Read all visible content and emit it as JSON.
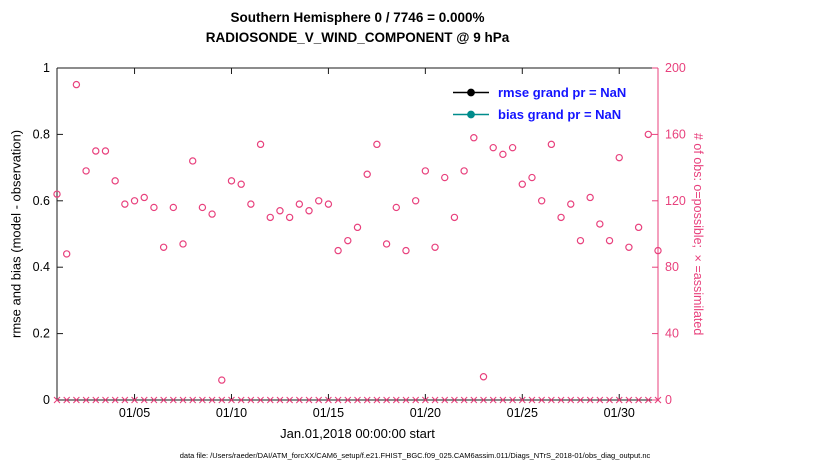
{
  "title": {
    "line1": "Southern Hemisphere 0 / 7746 = 0.000%",
    "line2": "RADIOSONDE_V_WIND_COMPONENT @ 9 hPa"
  },
  "colors": {
    "accent_pink": "#e8417d",
    "legend_blue": "#1414ff",
    "bias_teal": "#008c8c",
    "rmse_black": "#000000",
    "axis_black": "#1a1a1a"
  },
  "chart_data": {
    "type": "scatter",
    "title": "Southern Hemisphere 0 / 7746 = 0.000% | RADIOSONDE_V_WIND_COMPONENT @ 9 hPa",
    "xlabel": "Jan.01,2018 00:00:00 start",
    "ylabel_left": "rmse and bias (model - observation)",
    "ylabel_right": "# of obs: o=possible; ×=assimilated",
    "ylim_left": [
      0,
      1
    ],
    "ylim_right": [
      0,
      200
    ],
    "x_days_range": [
      0,
      31
    ],
    "grid": false,
    "legend_position": "top-right-inside",
    "xtick_days": [
      4,
      9,
      14,
      19,
      24,
      29
    ],
    "xtick_labels": [
      "01/05",
      "01/10",
      "01/15",
      "01/20",
      "01/25",
      "01/30"
    ],
    "ytick_left_labels": [
      "0",
      "0.2",
      "0.4",
      "0.6",
      "0.8",
      "1"
    ],
    "ytick_right_labels": [
      "0",
      "40",
      "80",
      "120",
      "160",
      "200"
    ],
    "legend": [
      {
        "name": "rmse",
        "label": "rmse grand pr = NaN",
        "color": "#000000"
      },
      {
        "name": "bias",
        "label": "bias grand pr = NaN",
        "color": "#008c8c"
      }
    ],
    "series": [
      {
        "name": "possible_obs",
        "marker": "o",
        "axis": "right",
        "color": "#e8417d",
        "x_start": 0,
        "x_step": 0.5,
        "values": [
          124,
          88,
          190,
          138,
          150,
          150,
          132,
          118,
          120,
          122,
          116,
          92,
          116,
          94,
          144,
          116,
          112,
          12,
          132,
          130,
          118,
          154,
          110,
          114,
          110,
          118,
          114,
          120,
          118,
          90,
          96,
          104,
          136,
          154,
          94,
          116,
          90,
          120,
          138,
          92,
          134,
          110,
          138,
          158,
          14,
          152,
          148,
          152,
          130,
          134,
          120,
          154,
          110,
          118,
          96,
          122,
          106,
          96,
          146,
          92,
          104,
          160,
          90
        ]
      },
      {
        "name": "assimilated_obs",
        "marker": "x",
        "axis": "right",
        "color": "#e8417d",
        "x_start": 0,
        "x_step": 0.5,
        "values": [
          0,
          0,
          0,
          0,
          0,
          0,
          0,
          0,
          0,
          0,
          0,
          0,
          0,
          0,
          0,
          0,
          0,
          0,
          0,
          0,
          0,
          0,
          0,
          0,
          0,
          0,
          0,
          0,
          0,
          0,
          0,
          0,
          0,
          0,
          0,
          0,
          0,
          0,
          0,
          0,
          0,
          0,
          0,
          0,
          0,
          0,
          0,
          0,
          0,
          0,
          0,
          0,
          0,
          0,
          0,
          0,
          0,
          0,
          0,
          0,
          0,
          0,
          0
        ]
      }
    ]
  },
  "footer": {
    "caption": "data file: /Users/raeder/DAI/ATM_forcXX/CAM6_setup/f.e21.FHIST_BGC.f09_025.CAM6assim.011/Diags_NTrS_2018-01/obs_diag_output.nc"
  }
}
